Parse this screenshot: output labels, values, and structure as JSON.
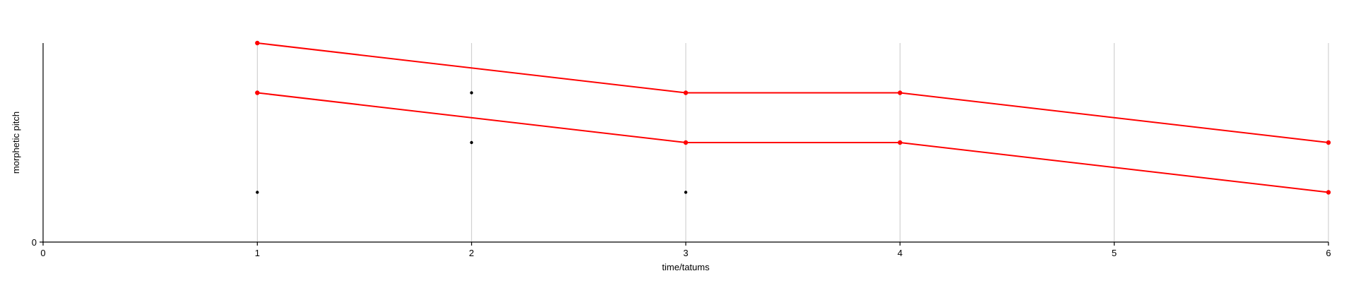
{
  "chart_data": {
    "type": "line",
    "xlabel": "time/tatums",
    "ylabel": "morphetic pitch",
    "xlim": [
      0,
      6
    ],
    "ylim": [
      0,
      4
    ],
    "x_ticks": [
      "0",
      "1",
      "2",
      "3",
      "4",
      "5",
      "6"
    ],
    "y_ticks": [
      "0"
    ],
    "grid": "vertical",
    "colors": {
      "highlight": "#ff0000",
      "points": "#000000",
      "grid": "#c8c8c8"
    },
    "series": [
      {
        "x": [
          1,
          3,
          4,
          6
        ],
        "y": [
          4,
          3,
          3,
          2
        ]
      },
      {
        "x": [
          1,
          3,
          4,
          6
        ],
        "y": [
          3,
          2,
          2,
          1
        ]
      }
    ],
    "points": [
      {
        "x": 1,
        "y": 1
      },
      {
        "x": 2,
        "y": 3
      },
      {
        "x": 2,
        "y": 2
      },
      {
        "x": 3,
        "y": 1
      }
    ]
  }
}
